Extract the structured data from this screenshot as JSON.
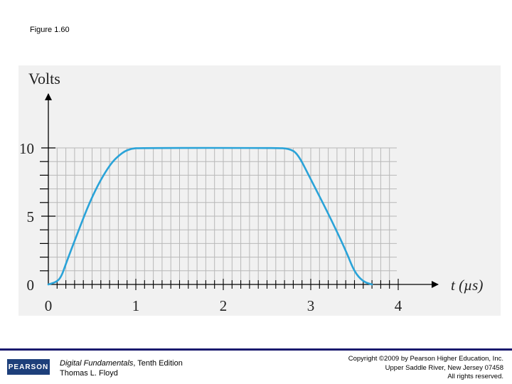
{
  "figure_label": "Figure 1.60",
  "footer": {
    "logo_text": "PEARSON",
    "book_title": "Digital Fundamentals",
    "book_edition": ", Tenth Edition",
    "author": "Thomas L. Floyd",
    "copyright_lines": [
      "Copyright ©2009 by Pearson Higher Education, Inc.",
      "Upper Saddle River, New Jersey 07458",
      "All rights reserved."
    ]
  },
  "colors": {
    "trace": "#2aa3d8",
    "grid": "#b8b8b8",
    "footer_rule": "#1a1a6e",
    "logo_bg": "#1d3f7a"
  },
  "chart_data": {
    "type": "line",
    "ylabel": "Volts",
    "xlabel": "t (µs)",
    "x_ticks": [
      "0",
      "1",
      "2",
      "3",
      "4"
    ],
    "y_ticks": [
      "0",
      "5",
      "10"
    ],
    "xlim": [
      0,
      4
    ],
    "ylim": [
      0,
      10
    ],
    "grid": true,
    "series": [
      {
        "x": [
          0,
          0.1,
          0.15,
          0.2,
          0.3,
          0.5,
          0.7,
          0.85,
          0.95,
          1.05,
          2.6,
          2.75,
          2.85,
          3.0,
          3.2,
          3.4,
          3.5,
          3.6,
          3.7
        ],
        "y": [
          0,
          0.2,
          0.6,
          1.5,
          3.2,
          6.5,
          8.8,
          9.7,
          9.95,
          10,
          10,
          9.95,
          9.6,
          7.7,
          5.2,
          2.5,
          0.9,
          0.2,
          0
        ]
      }
    ]
  }
}
